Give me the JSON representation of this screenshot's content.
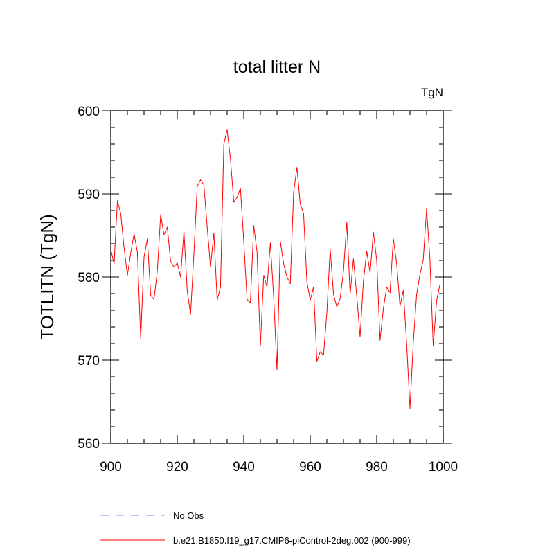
{
  "chart_data": {
    "type": "line",
    "title": "total litter N",
    "units": "TgN",
    "ylabel": "TOTLITN  (TgN)",
    "xlabel": "",
    "xlim": [
      900,
      1000
    ],
    "ylim": [
      560,
      600
    ],
    "x_ticks": [
      900,
      920,
      940,
      960,
      980,
      1000
    ],
    "y_ticks": [
      560,
      570,
      580,
      590,
      600
    ],
    "x_minor_step": 5,
    "y_minor_step": 2,
    "grid": false,
    "legend_position": "bottom-left",
    "series": [
      {
        "name": "No Obs",
        "color": "#8080ff",
        "style": "dashed",
        "x": [],
        "values": []
      },
      {
        "name": "b.e21.B1850.f19_g17.CMIP6-piControl-2deg.002 (900-999)",
        "color": "#ff0000",
        "style": "solid",
        "x": [
          900,
          901,
          902,
          903,
          904,
          905,
          906,
          907,
          908,
          909,
          910,
          911,
          912,
          913,
          914,
          915,
          916,
          917,
          918,
          919,
          920,
          921,
          922,
          923,
          924,
          925,
          926,
          927,
          928,
          929,
          930,
          931,
          932,
          933,
          934,
          935,
          936,
          937,
          938,
          939,
          940,
          941,
          942,
          943,
          944,
          945,
          946,
          947,
          948,
          949,
          950,
          951,
          952,
          953,
          954,
          955,
          956,
          957,
          958,
          959,
          960,
          961,
          962,
          963,
          964,
          965,
          966,
          967,
          968,
          969,
          970,
          971,
          972,
          973,
          974,
          975,
          976,
          977,
          978,
          979,
          980,
          981,
          982,
          983,
          984,
          985,
          986,
          987,
          988,
          989,
          990,
          991,
          992,
          993,
          994,
          995,
          996,
          997,
          998,
          999
        ],
        "values": [
          583.3,
          581.6,
          589.2,
          587.6,
          583.5,
          580.2,
          582.9,
          585.2,
          583.0,
          572.6,
          582.4,
          584.6,
          577.8,
          577.3,
          580.7,
          587.5,
          585.1,
          586.0,
          581.9,
          581.2,
          581.7,
          580.0,
          585.5,
          578.3,
          575.5,
          582.8,
          590.9,
          591.7,
          591.1,
          586.0,
          581.2,
          585.3,
          577.2,
          578.8,
          596.0,
          597.7,
          594.2,
          589.0,
          589.6,
          590.7,
          584.3,
          577.3,
          576.9,
          586.2,
          583.0,
          571.7,
          580.2,
          578.8,
          584.1,
          577.6,
          568.8,
          584.3,
          581.6,
          580.0,
          579.2,
          590.2,
          593.2,
          588.8,
          587.6,
          579.4,
          577.2,
          578.8,
          569.8,
          571.0,
          570.6,
          575.7,
          583.4,
          577.9,
          576.4,
          577.4,
          580.7,
          586.6,
          577.9,
          582.2,
          577.7,
          572.8,
          579.5,
          583.1,
          580.5,
          585.4,
          582.0,
          572.4,
          576.2,
          578.8,
          578.1,
          584.6,
          581.6,
          576.5,
          578.4,
          572.0,
          564.2,
          572.1,
          577.9,
          580.3,
          582.1,
          588.2,
          582.2,
          571.7,
          577.1,
          579.1
        ]
      }
    ]
  }
}
